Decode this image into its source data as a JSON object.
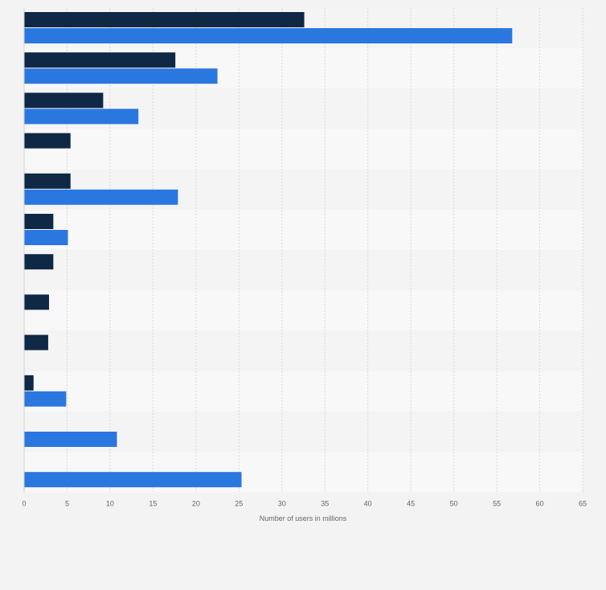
{
  "chart_data": {
    "type": "bar",
    "orientation": "horizontal",
    "title": "",
    "xlabel": "Number of users in millions",
    "ylabel": "",
    "xlim": [
      0,
      65
    ],
    "xticks": [
      0,
      5,
      10,
      15,
      20,
      25,
      30,
      35,
      40,
      45,
      50,
      55,
      60,
      65
    ],
    "grid": true,
    "legend": "none",
    "categories": [
      "",
      "",
      "",
      "",
      "",
      "",
      "",
      "",
      "",
      "",
      "",
      ""
    ],
    "series": [
      {
        "color": "#0f2846",
        "values": [
          32.6,
          17.6,
          9.2,
          5.4,
          5.4,
          3.4,
          3.4,
          2.9,
          2.8,
          1.1,
          null,
          null
        ]
      },
      {
        "color": "#2b77e0",
        "values": [
          56.8,
          22.5,
          13.3,
          null,
          17.9,
          5.1,
          null,
          null,
          null,
          4.9,
          10.8,
          25.3
        ]
      }
    ]
  }
}
